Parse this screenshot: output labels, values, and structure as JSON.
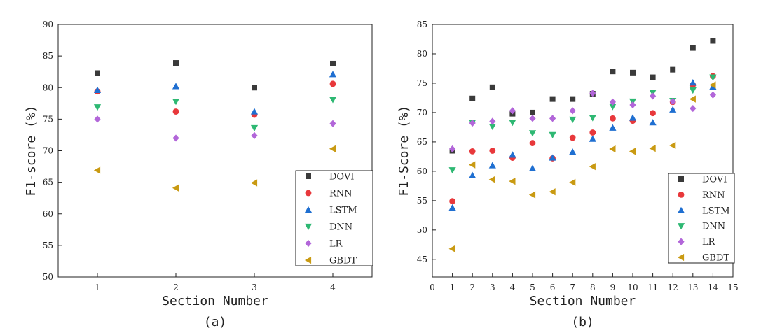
{
  "series_styles": [
    {
      "name": "DOVI",
      "marker": "square",
      "color": "#3a3a3a"
    },
    {
      "name": "RNN",
      "marker": "circle",
      "color": "#e8383b"
    },
    {
      "name": "LSTM",
      "marker": "triangle-up",
      "color": "#1f6fd1"
    },
    {
      "name": "DNN",
      "marker": "triangle-down",
      "color": "#2eb873"
    },
    {
      "name": "LR",
      "marker": "diamond",
      "color": "#b266d9"
    },
    {
      "name": "GBDT",
      "marker": "triangle-left",
      "color": "#c99a12"
    }
  ],
  "chart_data": [
    {
      "type": "scatter",
      "caption": "(a)",
      "xlabel": "Section Number",
      "ylabel": "F1-score (%)",
      "xlim": [
        0.5,
        4.5
      ],
      "ylim": [
        50,
        90
      ],
      "xticks": [
        1,
        2,
        3,
        4
      ],
      "yticks": [
        50,
        55,
        60,
        65,
        70,
        75,
        80,
        85,
        90
      ],
      "x": [
        1,
        2,
        3,
        4
      ],
      "legend": "bottom-right",
      "series": [
        {
          "name": "DOVI",
          "values": [
            82.3,
            83.9,
            80.0,
            83.8
          ]
        },
        {
          "name": "RNN",
          "values": [
            79.4,
            76.2,
            75.7,
            80.6
          ]
        },
        {
          "name": "LSTM",
          "values": [
            79.6,
            80.2,
            76.2,
            82.1
          ]
        },
        {
          "name": "DNN",
          "values": [
            76.9,
            77.8,
            73.6,
            78.1
          ]
        },
        {
          "name": "LR",
          "values": [
            75.0,
            72.0,
            72.4,
            74.3
          ]
        },
        {
          "name": "GBDT",
          "values": [
            66.9,
            64.1,
            64.9,
            70.3
          ]
        }
      ]
    },
    {
      "type": "scatter",
      "caption": "(b)",
      "xlabel": "Section Number",
      "ylabel": "F1-Score (%)",
      "xlim": [
        0,
        15
      ],
      "ylim": [
        42,
        85
      ],
      "xticks": [
        0,
        1,
        2,
        3,
        4,
        5,
        6,
        7,
        8,
        9,
        10,
        11,
        12,
        13,
        14,
        15
      ],
      "yticks": [
        45,
        50,
        55,
        60,
        65,
        70,
        75,
        80,
        85
      ],
      "x": [
        1,
        2,
        3,
        4,
        5,
        6,
        7,
        8,
        9,
        10,
        11,
        12,
        13,
        14
      ],
      "legend": "bottom-right",
      "series": [
        {
          "name": "DOVI",
          "values": [
            63.5,
            72.4,
            74.3,
            69.8,
            70.0,
            72.3,
            72.3,
            73.2,
            77.0,
            76.8,
            76.0,
            77.3,
            81.0,
            82.2
          ]
        },
        {
          "name": "RNN",
          "values": [
            54.9,
            63.4,
            63.5,
            62.3,
            64.8,
            62.2,
            65.7,
            66.6,
            69.0,
            68.6,
            69.9,
            71.8,
            74.7,
            76.2
          ]
        },
        {
          "name": "LSTM",
          "values": [
            53.8,
            59.3,
            61.0,
            62.8,
            60.5,
            62.3,
            63.3,
            65.5,
            67.4,
            69.1,
            68.3,
            70.5,
            75.1,
            74.4
          ]
        },
        {
          "name": "DNN",
          "values": [
            60.2,
            68.3,
            67.6,
            68.3,
            66.5,
            66.2,
            68.8,
            69.1,
            71.0,
            71.9,
            73.4,
            72.0,
            73.8,
            76.0
          ]
        },
        {
          "name": "LR",
          "values": [
            63.8,
            68.2,
            68.5,
            70.3,
            69.0,
            69.0,
            70.3,
            73.3,
            71.8,
            71.3,
            72.8,
            71.9,
            70.7,
            73.0
          ]
        },
        {
          "name": "GBDT",
          "values": [
            46.8,
            61.1,
            58.6,
            58.3,
            56.0,
            56.5,
            58.1,
            60.8,
            63.8,
            63.4,
            63.9,
            64.4,
            72.3,
            74.7
          ]
        }
      ]
    }
  ]
}
